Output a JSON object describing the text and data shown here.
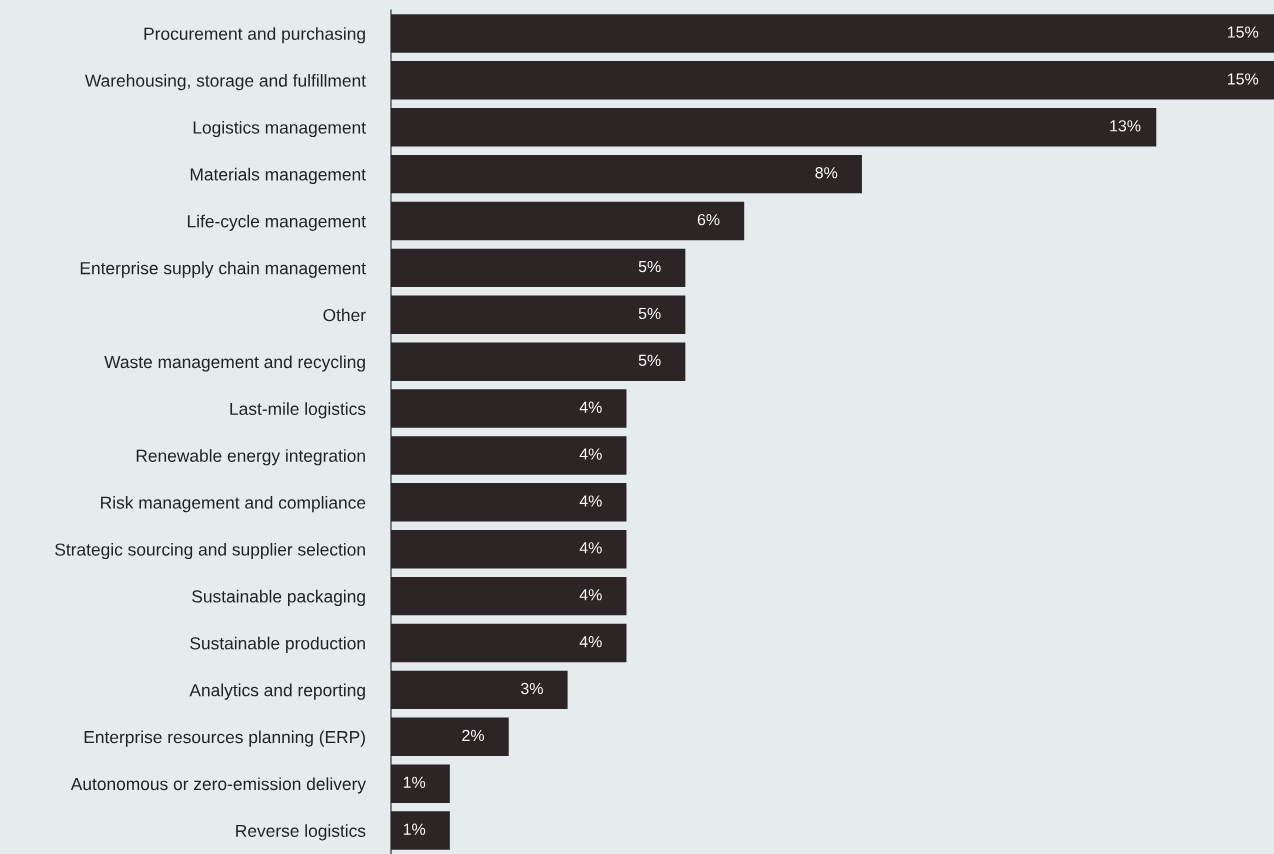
{
  "chart_data": {
    "type": "bar",
    "orientation": "horizontal",
    "categories": [
      "Procurement and purchasing",
      "Warehousing, storage and fulfillment",
      "Logistics management",
      "Materials management",
      "Life-cycle management",
      "Enterprise supply chain management",
      "Other",
      "Waste management and recycling",
      "Last-mile logistics",
      "Renewable energy integration",
      "Risk management and compliance",
      "Strategic sourcing and supplier selection",
      "Sustainable packaging",
      "Sustainable production",
      "Analytics and reporting",
      "Enterprise resources planning (ERP)",
      "Autonomous or zero-emission delivery",
      "Reverse logistics"
    ],
    "values": [
      15,
      15,
      13,
      8,
      6,
      5,
      5,
      5,
      4,
      4,
      4,
      4,
      4,
      4,
      3,
      2,
      1,
      1
    ],
    "value_labels": [
      "15%",
      "15%",
      "13%",
      "8%",
      "6%",
      "5%",
      "5%",
      "5%",
      "4%",
      "4%",
      "4%",
      "4%",
      "4%",
      "4%",
      "3%",
      "2%",
      "1%",
      "1%"
    ],
    "color": "#2b2526",
    "tick_labels": "y",
    "grid": false,
    "legend": false
  }
}
